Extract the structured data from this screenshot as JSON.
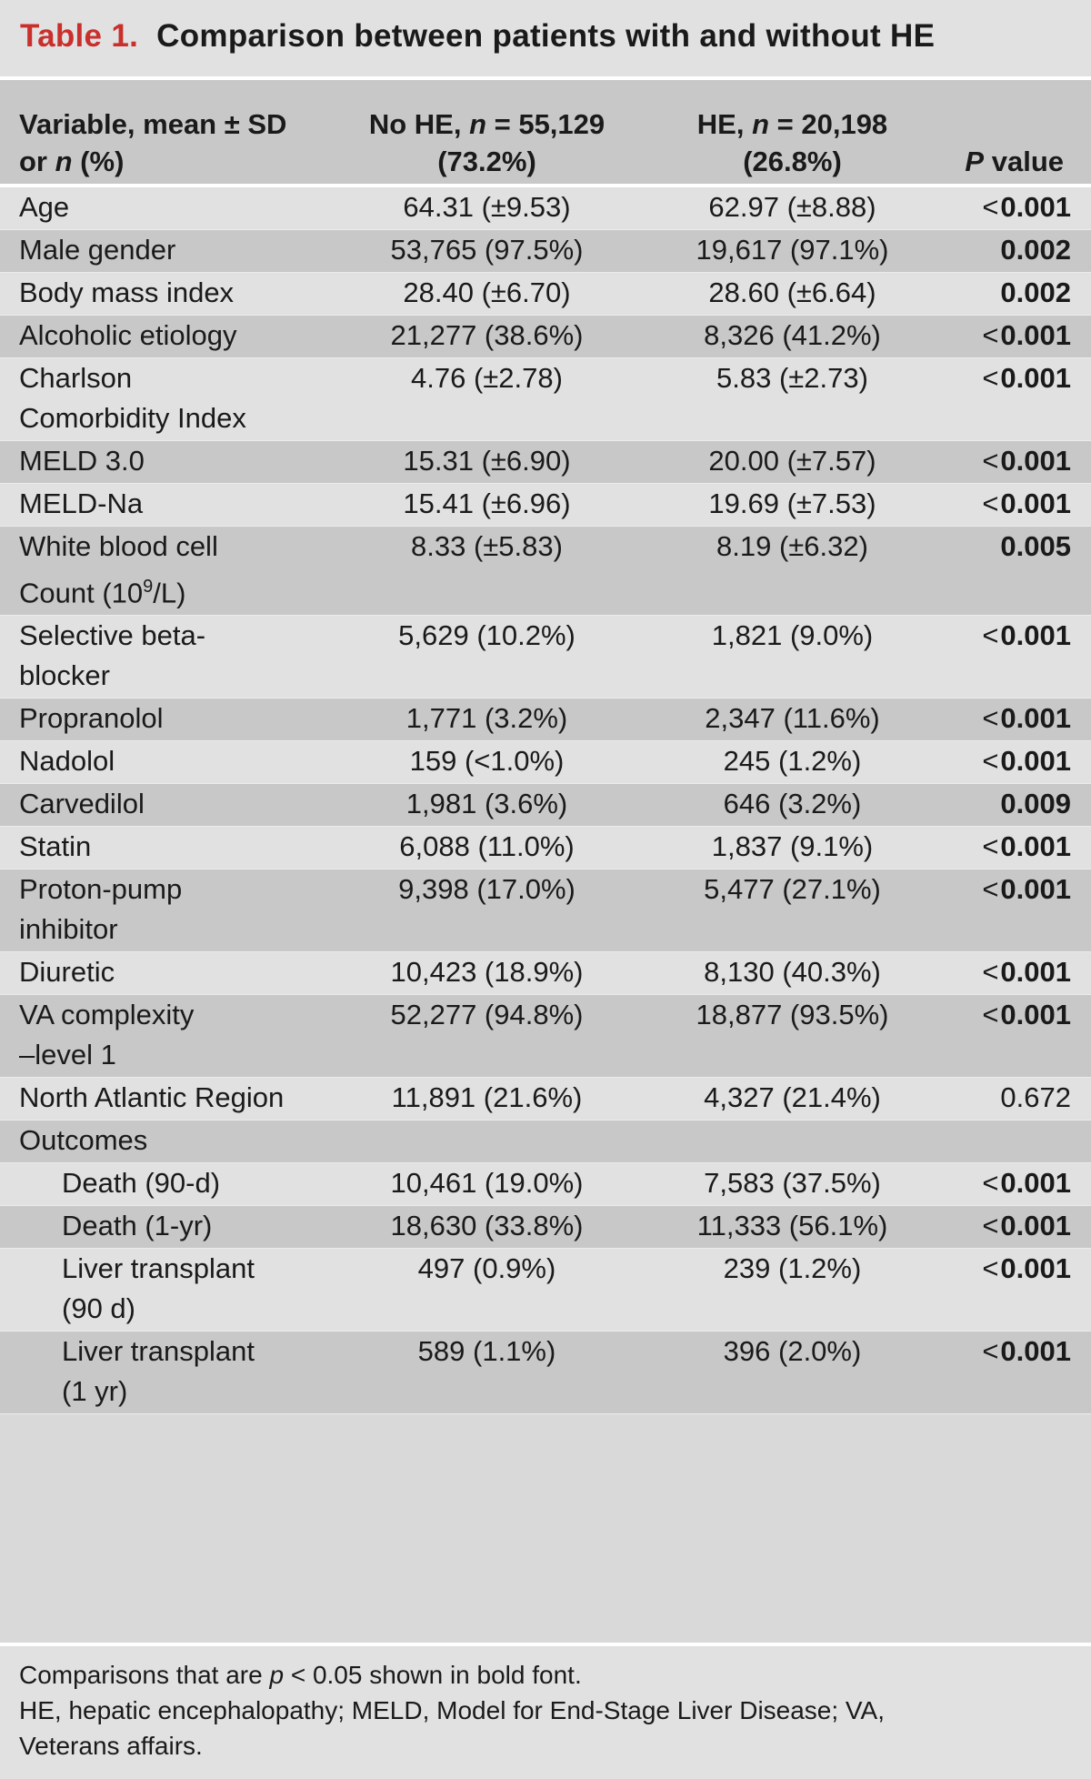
{
  "table": {
    "label": "Table 1.",
    "title": "Comparison between patients with and without HE",
    "headers": {
      "variable": [
        "Variable, mean ± SD",
        "or ",
        "n",
        " (%)"
      ],
      "no_he": [
        "No HE, ",
        "n",
        " = 55,129",
        "(73.2%)"
      ],
      "he": [
        "HE, ",
        "n",
        " = 20,198",
        "(26.8%)"
      ],
      "p": [
        "P",
        " value"
      ]
    },
    "rows": [
      {
        "variable": "Age",
        "no_he": "64.31 (±9.53)",
        "he": "62.97 (±8.88)",
        "p_prefix": "<",
        "p": "0.001",
        "bold": true,
        "shade": "light"
      },
      {
        "variable": "Male gender",
        "no_he": "53,765 (97.5%)",
        "he": "19,617 (97.1%)",
        "p_prefix": "",
        "p": "0.002",
        "bold": true,
        "shade": "dark"
      },
      {
        "variable": "Body mass index",
        "no_he": "28.40 (±6.70)",
        "he": "28.60 (±6.64)",
        "p_prefix": "",
        "p": "0.002",
        "bold": true,
        "shade": "light"
      },
      {
        "variable": "Alcoholic etiology",
        "no_he": "21,277 (38.6%)",
        "he": "8,326 (41.2%)",
        "p_prefix": "<",
        "p": "0.001",
        "bold": true,
        "shade": "dark"
      },
      {
        "variable": "Charlson",
        "variable_line2": "Comorbidity Index",
        "no_he": "4.76 (±2.78)",
        "he": "5.83 (±2.73)",
        "p_prefix": "<",
        "p": "0.001",
        "bold": true,
        "shade": "light"
      },
      {
        "variable": "MELD 3.0",
        "no_he": "15.31 (±6.90)",
        "he": "20.00 (±7.57)",
        "p_prefix": "<",
        "p": "0.001",
        "bold": true,
        "shade": "dark"
      },
      {
        "variable": "MELD-Na",
        "no_he": "15.41 (±6.96)",
        "he": "19.69 (±7.53)",
        "p_prefix": "<",
        "p": "0.001",
        "bold": true,
        "shade": "light"
      },
      {
        "variable": "White blood cell",
        "variable_line2": "Count (10",
        "variable_sup": "9",
        "variable_line2_end": "/L)",
        "no_he": "8.33 (±5.83)",
        "he": "8.19 (±6.32)",
        "p_prefix": "",
        "p": "0.005",
        "bold": true,
        "shade": "dark"
      },
      {
        "variable": "Selective beta-",
        "variable_line2": "blocker",
        "no_he": "5,629 (10.2%)",
        "he": "1,821 (9.0%)",
        "p_prefix": "<",
        "p": "0.001",
        "bold": true,
        "shade": "light"
      },
      {
        "variable": "Propranolol",
        "no_he": "1,771 (3.2%)",
        "he": "2,347 (11.6%)",
        "p_prefix": "<",
        "p": "0.001",
        "bold": true,
        "shade": "dark"
      },
      {
        "variable": "Nadolol",
        "no_he": "159 (<1.0%)",
        "he": "245 (1.2%)",
        "p_prefix": "<",
        "p": "0.001",
        "bold": true,
        "shade": "light"
      },
      {
        "variable": "Carvedilol",
        "no_he": "1,981 (3.6%)",
        "he": "646 (3.2%)",
        "p_prefix": "",
        "p": "0.009",
        "bold": true,
        "shade": "dark"
      },
      {
        "variable": "Statin",
        "no_he": "6,088 (11.0%)",
        "he": "1,837 (9.1%)",
        "p_prefix": "<",
        "p": "0.001",
        "bold": true,
        "shade": "light"
      },
      {
        "variable": "Proton-pump",
        "variable_line2": "inhibitor",
        "no_he": "9,398 (17.0%)",
        "he": "5,477 (27.1%)",
        "p_prefix": "<",
        "p": "0.001",
        "bold": true,
        "shade": "dark"
      },
      {
        "variable": "Diuretic",
        "no_he": "10,423 (18.9%)",
        "he": "8,130 (40.3%)",
        "p_prefix": "<",
        "p": "0.001",
        "bold": true,
        "shade": "light"
      },
      {
        "variable": "VA complexity",
        "variable_line2": "–level 1",
        "no_he": "52,277 (94.8%)",
        "he": "18,877 (93.5%)",
        "p_prefix": "<",
        "p": "0.001",
        "bold": true,
        "shade": "dark"
      },
      {
        "variable": "North Atlantic Region",
        "no_he": "11,891 (21.6%)",
        "he": "4,327 (21.4%)",
        "p_prefix": "",
        "p": "0.672",
        "bold": false,
        "shade": "light"
      },
      {
        "variable": "Outcomes",
        "no_he": "",
        "he": "",
        "p_prefix": "",
        "p": "",
        "bold": false,
        "shade": "dark",
        "section": true
      },
      {
        "variable": "Death (90-d)",
        "no_he": "10,461 (19.0%)",
        "he": "7,583 (37.5%)",
        "p_prefix": "<",
        "p": "0.001",
        "bold": true,
        "shade": "light",
        "indent": true
      },
      {
        "variable": "Death (1-yr)",
        "no_he": "18,630 (33.8%)",
        "he": "11,333 (56.1%)",
        "p_prefix": "<",
        "p": "0.001",
        "bold": true,
        "shade": "dark",
        "indent": true
      },
      {
        "variable": "Liver transplant",
        "variable_line2": "(90 d)",
        "no_he": "497 (0.9%)",
        "he": "239 (1.2%)",
        "p_prefix": "<",
        "p": "0.001",
        "bold": true,
        "shade": "light",
        "indent": true
      },
      {
        "variable": "Liver transplant",
        "variable_line2": "(1 yr)",
        "no_he": "589 (1.1%)",
        "he": "396 (2.0%)",
        "p_prefix": "<",
        "p": "0.001",
        "bold": true,
        "shade": "dark",
        "indent": true
      }
    ],
    "footnote": {
      "line1_a": "Comparisons that are ",
      "line1_p": "p",
      "line1_b": " < 0.05 shown in bold font.",
      "line2": "HE, hepatic encephalopathy; MELD, Model for End-Stage Liver Disease; VA,",
      "line3": "Veterans affairs."
    }
  }
}
